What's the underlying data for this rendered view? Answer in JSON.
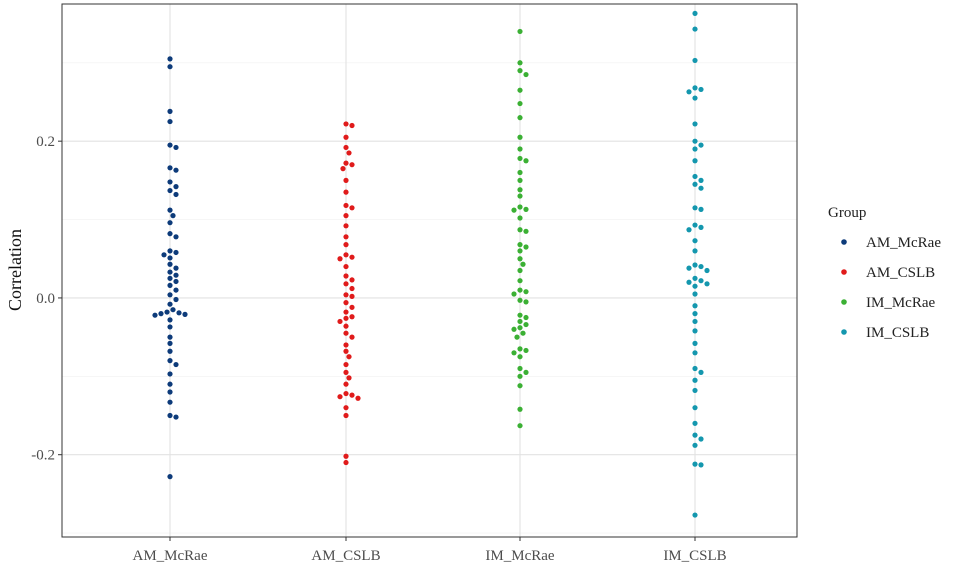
{
  "chart_data": {
    "type": "scatter",
    "ylabel": "Correlation",
    "xlabel": "",
    "ylim": [
      -0.305,
      0.375
    ],
    "yticks": [
      {
        "value": -0.2,
        "label": "-0.2"
      },
      {
        "value": 0.0,
        "label": "0.0"
      },
      {
        "value": 0.2,
        "label": "0.2"
      }
    ],
    "categories": [
      "AM_McRae",
      "AM_CSLB",
      "IM_McRae",
      "IM_CSLB"
    ],
    "legend": {
      "title": "Group",
      "position": "right"
    },
    "grid": true,
    "series": [
      {
        "name": "AM_McRae",
        "color": "#0d3b7a",
        "values": [
          0.305,
          0.295,
          0.238,
          0.225,
          0.195,
          0.192,
          0.166,
          0.163,
          0.148,
          0.142,
          0.137,
          0.132,
          0.112,
          0.105,
          0.096,
          0.082,
          0.078,
          0.06,
          0.058,
          0.055,
          0.051,
          0.043,
          0.038,
          0.033,
          0.029,
          0.025,
          0.021,
          0.016,
          0.01,
          0.004,
          -0.002,
          -0.008,
          -0.015,
          -0.018,
          -0.019,
          -0.02,
          -0.021,
          -0.022,
          -0.028,
          -0.037,
          -0.05,
          -0.058,
          -0.068,
          -0.08,
          -0.085,
          -0.097,
          -0.11,
          -0.12,
          -0.133,
          -0.15,
          -0.152,
          -0.228
        ]
      },
      {
        "name": "AM_CSLB",
        "color": "#e01b1b",
        "values": [
          0.222,
          0.22,
          0.205,
          0.192,
          0.185,
          0.172,
          0.17,
          0.165,
          0.15,
          0.135,
          0.118,
          0.115,
          0.105,
          0.092,
          0.078,
          0.068,
          0.055,
          0.052,
          0.05,
          0.04,
          0.028,
          0.023,
          0.018,
          0.012,
          0.004,
          0.002,
          -0.006,
          -0.012,
          -0.018,
          -0.024,
          -0.026,
          -0.03,
          -0.036,
          -0.045,
          -0.05,
          -0.06,
          -0.068,
          -0.075,
          -0.085,
          -0.095,
          -0.102,
          -0.11,
          -0.122,
          -0.124,
          -0.126,
          -0.128,
          -0.14,
          -0.15,
          -0.202,
          -0.21
        ]
      },
      {
        "name": "IM_McRae",
        "color": "#3bb034",
        "values": [
          0.34,
          0.3,
          0.29,
          0.285,
          0.265,
          0.248,
          0.23,
          0.205,
          0.19,
          0.178,
          0.175,
          0.16,
          0.15,
          0.138,
          0.13,
          0.116,
          0.113,
          0.112,
          0.102,
          0.087,
          0.085,
          0.068,
          0.065,
          0.06,
          0.05,
          0.043,
          0.035,
          0.022,
          0.01,
          0.008,
          0.005,
          -0.003,
          -0.005,
          -0.022,
          -0.025,
          -0.03,
          -0.034,
          -0.038,
          -0.04,
          -0.045,
          -0.05,
          -0.065,
          -0.067,
          -0.07,
          -0.075,
          -0.09,
          -0.095,
          -0.1,
          -0.112,
          -0.142,
          -0.163
        ]
      },
      {
        "name": "IM_CSLB",
        "color": "#1497ae",
        "values": [
          0.363,
          0.343,
          0.303,
          0.268,
          0.266,
          0.263,
          0.255,
          0.222,
          0.2,
          0.195,
          0.19,
          0.175,
          0.155,
          0.15,
          0.145,
          0.14,
          0.115,
          0.113,
          0.093,
          0.09,
          0.087,
          0.073,
          0.06,
          0.042,
          0.04,
          0.038,
          0.035,
          0.025,
          0.022,
          0.02,
          0.018,
          0.015,
          0.005,
          -0.01,
          -0.02,
          -0.03,
          -0.042,
          -0.058,
          -0.07,
          -0.09,
          -0.095,
          -0.105,
          -0.118,
          -0.14,
          -0.16,
          -0.175,
          -0.18,
          -0.188,
          -0.212,
          -0.213,
          -0.277
        ]
      }
    ]
  }
}
